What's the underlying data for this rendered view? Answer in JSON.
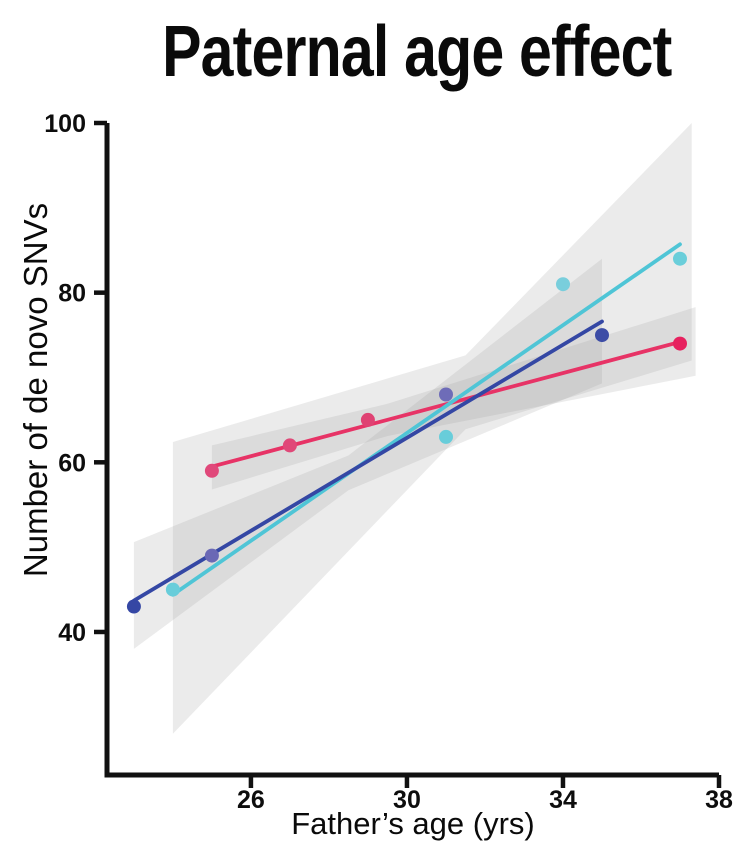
{
  "title": "Paternal age effect",
  "chart_data": {
    "type": "scatter",
    "title": "Paternal age effect",
    "xlabel": "Father’s age (yrs)",
    "ylabel": "Number of de novo SNVs",
    "xlim": [
      22.31,
      38
    ],
    "ylim": [
      23.14,
      100
    ],
    "x_ticks": [
      26,
      30,
      34,
      38
    ],
    "y_ticks": [
      40,
      60,
      80,
      100
    ],
    "grid": false,
    "legend_position": "none",
    "axis_color": "#111111",
    "band_color": "#9b9b9b",
    "band_opacity": 0.2,
    "series": [
      {
        "name": "pink",
        "line_color": "#E73366",
        "marker_colors": [
          "#E0487A",
          "#E04878",
          "#DF4273",
          "#E7215F"
        ],
        "points": [
          [
            25,
            59
          ],
          [
            27,
            62
          ],
          [
            29,
            65
          ],
          [
            37,
            74
          ]
        ],
        "trend_line": [
          [
            25,
            59.5
          ],
          [
            37,
            74.2
          ]
        ],
        "ci_upper": [
          [
            25,
            62.0
          ],
          [
            29.5,
            66.9
          ],
          [
            37.4,
            78.3
          ]
        ],
        "ci_lower": [
          [
            25,
            56.8
          ],
          [
            29.5,
            63.1
          ],
          [
            37.4,
            70.2
          ]
        ]
      },
      {
        "name": "cyan",
        "line_color": "#4FC5D6",
        "marker_colors": [
          "#68CDDA",
          "#68CDDA",
          "#79CEDC",
          "#6ACEDA"
        ],
        "points": [
          [
            24,
            45
          ],
          [
            31,
            63
          ],
          [
            34,
            81
          ],
          [
            37,
            84
          ]
        ],
        "trend_line": [
          [
            24,
            44.4
          ],
          [
            37,
            85.7
          ]
        ],
        "ci_upper": [
          [
            24,
            62.4
          ],
          [
            31.5,
            72.6
          ],
          [
            37.3,
            100
          ]
        ],
        "ci_lower": [
          [
            24,
            28.0
          ],
          [
            31.5,
            63.9
          ],
          [
            37.3,
            72.0
          ]
        ]
      },
      {
        "name": "blue",
        "line_color": "#3447A4",
        "marker_colors": [
          "#3547A4",
          "#6A68B5",
          "#6E6CB8",
          "#3D4DA6"
        ],
        "points": [
          [
            23,
            43
          ],
          [
            25,
            49
          ],
          [
            31,
            68
          ],
          [
            35,
            75
          ]
        ],
        "trend_line": [
          [
            23,
            43.7
          ],
          [
            35,
            76.6
          ]
        ],
        "ci_upper": [
          [
            23,
            50.6
          ],
          [
            28.5,
            60.8
          ],
          [
            35,
            84.0
          ]
        ],
        "ci_lower": [
          [
            23,
            38.0
          ],
          [
            28.5,
            56.7
          ],
          [
            35,
            69.3
          ]
        ]
      }
    ]
  }
}
